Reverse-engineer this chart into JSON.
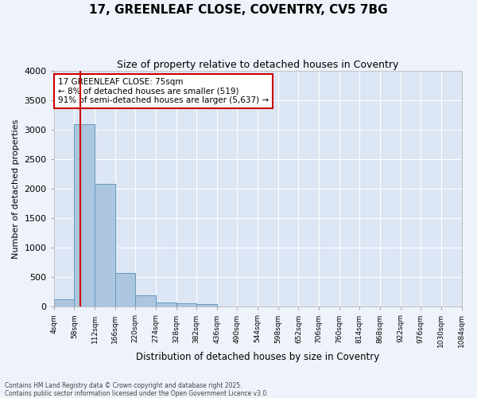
{
  "title1": "17, GREENLEAF CLOSE, COVENTRY, CV5 7BG",
  "title2": "Size of property relative to detached houses in Coventry",
  "xlabel": "Distribution of detached houses by size in Coventry",
  "ylabel": "Number of detached properties",
  "property_size": 75,
  "annotation_line1": "17 GREENLEAF CLOSE: 75sqm",
  "annotation_line2": "← 8% of detached houses are smaller (519)",
  "annotation_line3": "91% of semi-detached houses are larger (5,637) →",
  "bar_color": "#adc6e0",
  "bar_edge_color": "#6699bb",
  "vline_color": "#cc0000",
  "annotation_box_color": "#cc0000",
  "plot_bg_color": "#dce6f5",
  "fig_bg_color": "#eef2fa",
  "grid_color": "#ffffff",
  "ylim": [
    0,
    4000
  ],
  "yticks": [
    0,
    500,
    1000,
    1500,
    2000,
    2500,
    3000,
    3500,
    4000
  ],
  "bin_edges": [
    4,
    58,
    112,
    166,
    220,
    274,
    328,
    382,
    436,
    490,
    544,
    598,
    652,
    706,
    760,
    814,
    868,
    922,
    976,
    1030,
    1084
  ],
  "bin_labels": [
    "4sqm",
    "58sqm",
    "112sqm",
    "166sqm",
    "220sqm",
    "274sqm",
    "328sqm",
    "382sqm",
    "436sqm",
    "490sqm",
    "544sqm",
    "598sqm",
    "652sqm",
    "706sqm",
    "760sqm",
    "814sqm",
    "868sqm",
    "922sqm",
    "976sqm",
    "1030sqm",
    "1084sqm"
  ],
  "bar_heights": [
    130,
    3100,
    2090,
    570,
    195,
    70,
    55,
    40,
    0,
    0,
    0,
    0,
    0,
    0,
    0,
    0,
    0,
    0,
    0,
    0
  ],
  "footer_line1": "Contains HM Land Registry data © Crown copyright and database right 2025.",
  "footer_line2": "Contains public sector information licensed under the Open Government Licence v3.0."
}
